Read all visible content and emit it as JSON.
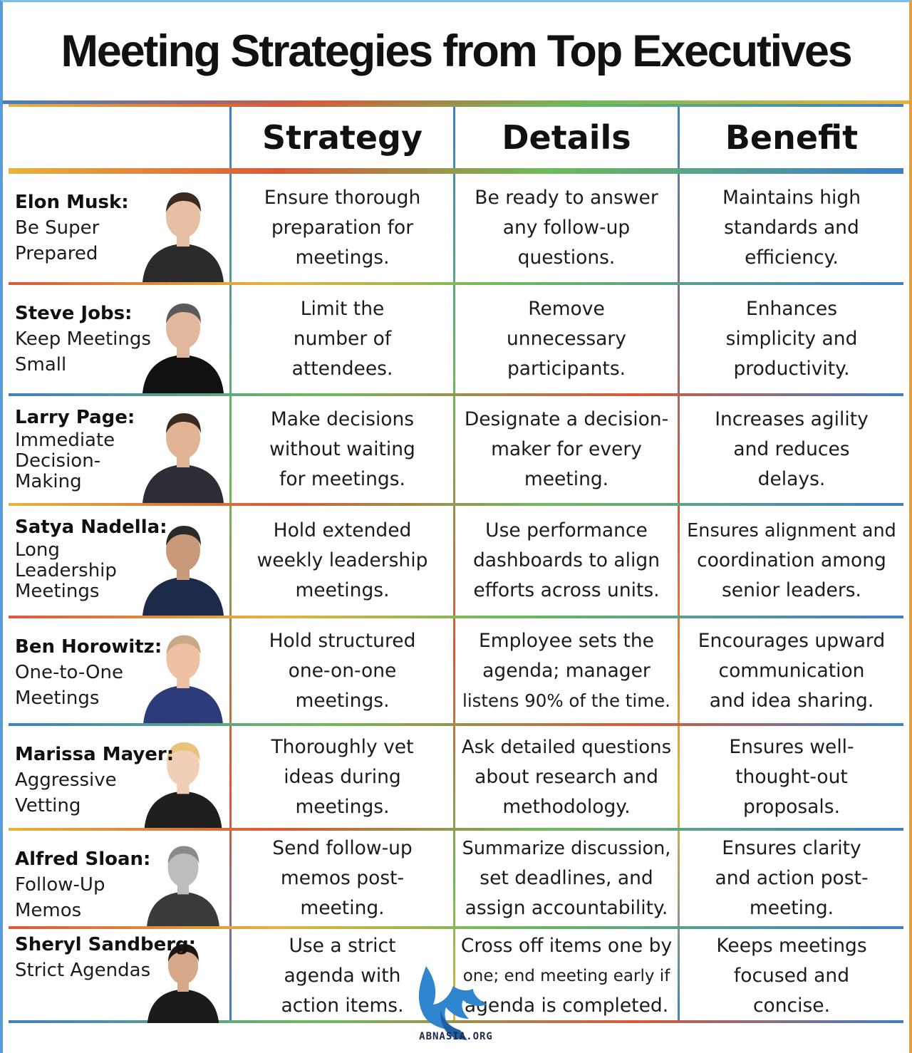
{
  "title": "Meeting Strategies from Top Executives",
  "headers": {
    "strategy": "Strategy",
    "details": "Details",
    "benefit": "Benefit"
  },
  "rows": [
    {
      "name": "Elon Musk:",
      "strategy_title": "Be Super Prepared",
      "strategy_lines": [
        "Ensure thorough",
        "preparation for",
        "meetings."
      ],
      "details_lines": [
        "Be ready to answer",
        "any follow-up",
        "questions."
      ],
      "benefit_lines": [
        "Maintains high",
        "standards and",
        "efficiency."
      ],
      "portrait_icon": "man-in-dark-jacket-portrait"
    },
    {
      "name": "Steve Jobs:",
      "strategy_title": "Keep Meetings Small",
      "strategy_lines": [
        "Limit the",
        "number of",
        "attendees."
      ],
      "details_lines": [
        "Remove",
        "unnecessary",
        "participants."
      ],
      "benefit_lines": [
        "Enhances",
        "simplicity and",
        "productivity."
      ],
      "portrait_icon": "man-in-black-turtleneck-portrait"
    },
    {
      "name": "Larry Page:",
      "strategy_title": "Immediate Decision-Making",
      "strategy_lines": [
        "Make decisions",
        "without waiting",
        "for meetings."
      ],
      "details_lines": [
        "Designate a decision-",
        "maker for every",
        "meeting."
      ],
      "benefit_lines": [
        "Increases agility",
        "and reduces",
        "delays."
      ],
      "portrait_icon": "man-in-suit-portrait"
    },
    {
      "name": "Satya Nadella:",
      "strategy_title": "Long Leadership Meetings",
      "strategy_lines": [
        "Hold extended",
        "weekly leadership",
        "meetings."
      ],
      "details_lines": [
        "Use performance",
        "dashboards to align",
        "efforts across units."
      ],
      "benefit_lines": [
        "Ensures alignment and",
        "coordination among",
        "senior leaders."
      ],
      "portrait_icon": "man-with-glasses-in-suit-portrait"
    },
    {
      "name": "Ben Horowitz:",
      "strategy_title": "One-to-One Meetings",
      "strategy_lines": [
        "Hold structured",
        "one-on-one",
        "meetings."
      ],
      "details_lines": [
        "Employee sets the",
        "agenda; manager",
        "listens 90% of the time."
      ],
      "benefit_lines": [
        "Encourages upward",
        "communication",
        "and idea sharing."
      ],
      "portrait_icon": "man-in-navy-sweater-portrait"
    },
    {
      "name": "Marissa Mayer:",
      "strategy_title": "Aggressive Vetting",
      "strategy_lines": [
        "Thoroughly vet",
        "ideas during",
        "meetings."
      ],
      "details_lines": [
        "Ask detailed questions",
        "about research and",
        "methodology."
      ],
      "benefit_lines": [
        "Ensures well-",
        "thought-out",
        "proposals."
      ],
      "portrait_icon": "blonde-woman-portrait"
    },
    {
      "name": "Alfred Sloan:",
      "strategy_title": "Follow-Up Memos",
      "strategy_lines": [
        "Send follow-up",
        "memos post-",
        "meeting."
      ],
      "details_lines": [
        "Summarize discussion,",
        "set deadlines, and",
        "assign accountability."
      ],
      "benefit_lines": [
        "Ensures clarity",
        "and action post-",
        "meeting."
      ],
      "portrait_icon": "elderly-man-black-and-white-portrait"
    },
    {
      "name": "Sheryl Sandberg:",
      "strategy_title": "Strict Agendas",
      "strategy_lines": [
        "Use a strict",
        "agenda with",
        "action items."
      ],
      "details_lines": [
        "Cross off items one by",
        "one; end meeting early if",
        "agenda is completed."
      ],
      "benefit_lines": [
        "Keeps meetings",
        "focused and",
        "concise."
      ],
      "portrait_icon": "dark-haired-woman-portrait"
    }
  ],
  "footer": {
    "logo_icon": "blue-griffin-logo",
    "site": "ABNASIA.ORG"
  },
  "colors": {
    "blue": "#3f7fc8",
    "red": "#d85a3a",
    "green": "#6dbb5a",
    "yellow": "#e7b33d"
  }
}
